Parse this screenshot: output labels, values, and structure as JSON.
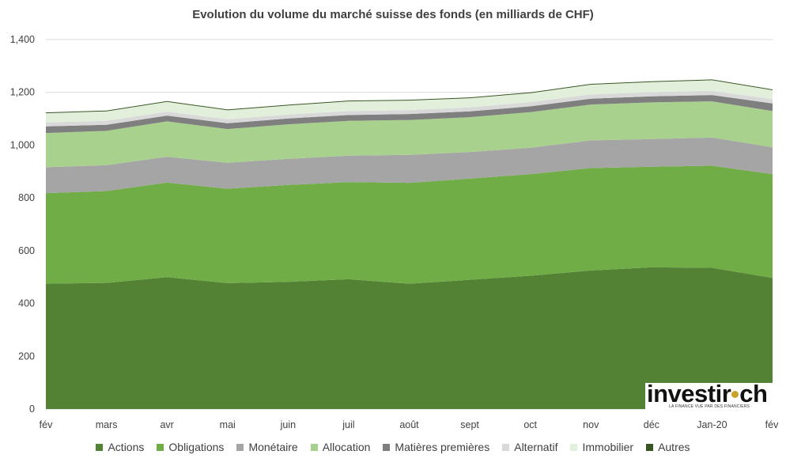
{
  "chart_data": {
    "type": "area",
    "stacked": true,
    "title": "Evolution du volume du marché suisse des fonds (en milliards de CHF)",
    "categories": [
      "fév",
      "mars",
      "avr",
      "mai",
      "juin",
      "juil",
      "août",
      "sept",
      "oct",
      "nov",
      "déc",
      "Jan-20",
      "fév"
    ],
    "ylim": [
      0,
      1400
    ],
    "yticks": [
      "0",
      "200",
      "400",
      "600",
      "800",
      "1,000",
      "1,200",
      "1,400"
    ],
    "ytick_values": [
      0,
      200,
      400,
      600,
      800,
      1000,
      1200,
      1400
    ],
    "grid": true,
    "legend_position": "bottom",
    "series": [
      {
        "name": "Actions",
        "color": "#548235",
        "values": [
          475,
          478,
          500,
          477,
          482,
          492,
          475,
          490,
          505,
          525,
          537,
          535,
          497
        ]
      },
      {
        "name": "Obligations",
        "color": "#70AD47",
        "values": [
          343,
          348,
          358,
          358,
          367,
          368,
          382,
          383,
          385,
          388,
          381,
          387,
          393
        ]
      },
      {
        "name": "Monétaire",
        "color": "#A5A5A5",
        "values": [
          98,
          98,
          98,
          98,
          99,
          100,
          106,
          101,
          100,
          105,
          105,
          107,
          102
        ]
      },
      {
        "name": "Allocation",
        "color": "#A9D18E",
        "values": [
          130,
          130,
          134,
          128,
          131,
          132,
          132,
          132,
          135,
          136,
          139,
          137,
          137
        ]
      },
      {
        "name": "Matières premières",
        "color": "#7F7F7F",
        "values": [
          25,
          23,
          22,
          22,
          22,
          22,
          23,
          22,
          22,
          22,
          23,
          24,
          29
        ]
      },
      {
        "name": "Alternatif",
        "color": "#D9D9D9",
        "values": [
          15,
          15,
          15,
          15,
          15,
          15,
          15,
          15,
          16,
          16,
          16,
          16,
          16
        ]
      },
      {
        "name": "Immobilier",
        "color": "#E2EFDA",
        "values": [
          35,
          36,
          37,
          34,
          34,
          37,
          36,
          35,
          34,
          37,
          38,
          40,
          34
        ]
      },
      {
        "name": "Autres",
        "color": "#375623",
        "values": [
          3,
          3,
          3,
          3,
          3,
          3,
          3,
          3,
          3,
          3,
          3,
          3,
          3
        ]
      }
    ]
  },
  "logo": {
    "text_left": "investir",
    "text_right": "ch",
    "tagline": "LA FINANCE VUE PAR DES FINANCIERS"
  }
}
